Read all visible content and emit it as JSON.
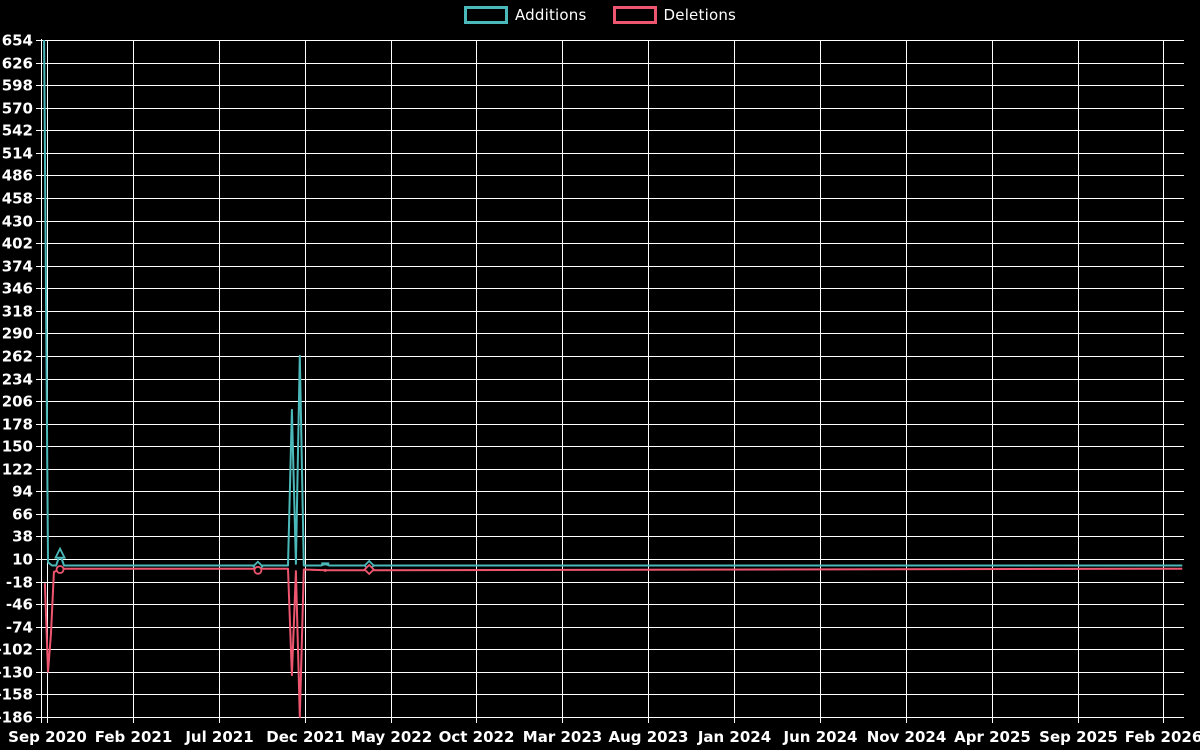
{
  "legend": {
    "items": [
      {
        "label": "Additions",
        "color": "#4bb9b9"
      },
      {
        "label": "Deletions",
        "color": "#ee5670"
      }
    ]
  },
  "chart_data": {
    "type": "line",
    "title": "",
    "xlabel": "",
    "ylabel": "",
    "legend_position": "top-center",
    "grid": true,
    "background_color": "#000000",
    "grid_color": "#ffffff",
    "text_color": "#ffffff",
    "x_tick_labels": [
      "Sep 2020",
      "Feb 2021",
      "Jul 2021",
      "Dec 2021",
      "May 2022",
      "Oct 2022",
      "Mar 2023",
      "Aug 2023",
      "Jan 2024",
      "Jun 2024",
      "Nov 2024",
      "Apr 2025",
      "Sep 2025",
      "Feb 2026"
    ],
    "x_tick_interval_months": 5,
    "y_tick_labels": [
      654,
      626,
      598,
      570,
      542,
      514,
      486,
      458,
      430,
      402,
      374,
      346,
      318,
      290,
      262,
      234,
      206,
      178,
      150,
      122,
      94,
      66,
      38,
      10,
      -18,
      -46,
      -74,
      -102,
      -130,
      -158,
      -186
    ],
    "y_tick_step": 28,
    "ylim": [
      -186,
      654
    ],
    "xlim_months": [
      -0.35,
      66.2
    ],
    "series": [
      {
        "name": "Additions",
        "color": "#4bb9b9",
        "points": [
          [
            -0.17,
            654
          ],
          [
            0.06,
            6
          ],
          [
            0.29,
            2
          ],
          [
            0.53,
            2
          ],
          [
            0.76,
            16
          ],
          [
            0.99,
            2
          ],
          [
            12.05,
            2
          ],
          [
            12.28,
            1
          ],
          [
            12.51,
            2
          ],
          [
            14.03,
            2
          ],
          [
            14.26,
            195
          ],
          [
            14.49,
            4
          ],
          [
            14.72,
            262
          ],
          [
            14.95,
            2
          ],
          [
            15.97,
            2
          ],
          [
            16.2,
            4
          ],
          [
            16.43,
            2
          ],
          [
            66.1,
            2
          ]
        ],
        "markers": [
          {
            "m": 0.76,
            "v": 16,
            "shape": "triangle"
          },
          {
            "m": 12.28,
            "v": 1,
            "shape": "diamond"
          },
          {
            "m": 16.2,
            "v": 4,
            "shape": "dash"
          },
          {
            "m": 18.76,
            "v": 2,
            "shape": "diamond"
          }
        ]
      },
      {
        "name": "Deletions",
        "color": "#ee5670",
        "points": [
          [
            -0.12,
            -20
          ],
          [
            0.06,
            -130
          ],
          [
            0.23,
            -82
          ],
          [
            0.4,
            -6
          ],
          [
            0.76,
            -3
          ],
          [
            0.99,
            -2
          ],
          [
            12.05,
            -2
          ],
          [
            12.28,
            -4
          ],
          [
            12.51,
            -2
          ],
          [
            14.03,
            -2
          ],
          [
            14.26,
            -134
          ],
          [
            14.49,
            -5
          ],
          [
            14.72,
            -186
          ],
          [
            14.95,
            -3
          ],
          [
            16.2,
            -4
          ],
          [
            66.1,
            -2
          ]
        ],
        "markers": [
          {
            "m": 0.76,
            "v": -3,
            "shape": "circle"
          },
          {
            "m": 12.28,
            "v": -4,
            "shape": "circle"
          },
          {
            "m": 16.2,
            "v": -4,
            "shape": "dot"
          },
          {
            "m": 18.76,
            "v": -3,
            "shape": "diamond"
          }
        ]
      }
    ]
  }
}
